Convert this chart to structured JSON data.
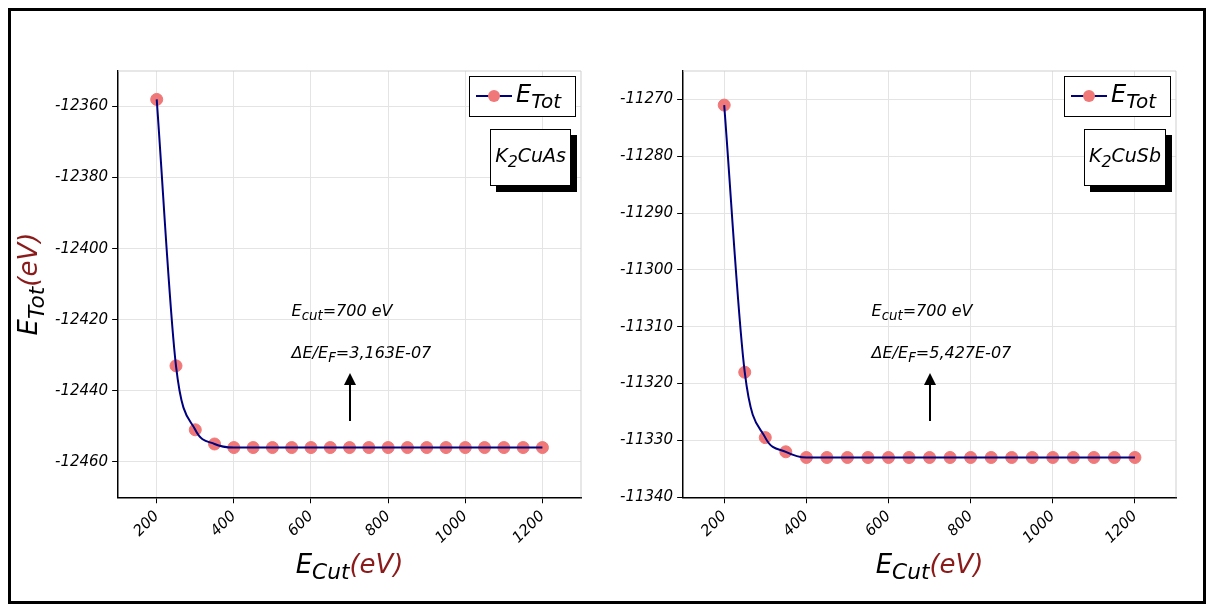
{
  "chart_data": [
    {
      "type": "line",
      "xlabel": "E$_{Cut}$(eV)",
      "ylabel": "E$_{Tot}$(eV)",
      "x": [
        200,
        250,
        300,
        350,
        400,
        450,
        500,
        550,
        600,
        650,
        700,
        750,
        800,
        850,
        900,
        950,
        1000,
        1050,
        1100,
        1150,
        1200
      ],
      "series": [
        {
          "type": "line",
          "color": "#00007f",
          "marker": "none",
          "values": [
            -12358,
            -12433,
            -12451,
            -12455,
            -12456,
            -12456,
            -12456,
            -12456,
            -12456,
            -12456,
            -12456,
            -12456,
            -12456,
            -12456,
            -12456,
            -12456,
            -12456,
            -12456,
            -12456,
            -12456,
            -12456
          ]
        },
        {
          "type": "scatter",
          "name": "E$_{Tot}$",
          "color": "#f07878",
          "marker": "circle",
          "values": [
            -12358,
            -12433,
            -12451,
            -12455,
            -12456,
            -12456,
            -12456,
            -12456,
            -12456,
            -12456,
            -12456,
            -12456,
            -12456,
            -12456,
            -12456,
            -12456,
            -12456,
            -12456,
            -12456,
            -12456,
            -12456
          ]
        }
      ],
      "xlim": [
        100,
        1300
      ],
      "xticks": [
        200,
        400,
        600,
        800,
        1000,
        1200
      ],
      "ylim": [
        -12470,
        -12350
      ],
      "yticks": [
        -12460,
        -12440,
        -12420,
        -12400,
        -12380,
        -12360
      ],
      "grid": true,
      "legend": "top right",
      "line_style": "solid",
      "annotations": [
        "K$_{2}$CuAs",
        "E$_{cut}$=700 eV",
        "ΔE/E$_{F}$=3,163E-07"
      ]
    },
    {
      "type": "line",
      "xlabel": "E$_{Cut}$(eV)",
      "x": [
        200,
        250,
        300,
        350,
        400,
        450,
        500,
        550,
        600,
        650,
        700,
        750,
        800,
        850,
        900,
        950,
        1000,
        1050,
        1100,
        1150,
        1200
      ],
      "series": [
        {
          "type": "line",
          "color": "#00007f",
          "marker": "none",
          "values": [
            -11271,
            -11318,
            -11329.5,
            -11332,
            -11333,
            -11333,
            -11333,
            -11333,
            -11333,
            -11333,
            -11333,
            -11333,
            -11333,
            -11333,
            -11333,
            -11333,
            -11333,
            -11333,
            -11333,
            -11333,
            -11333
          ]
        },
        {
          "type": "scatter",
          "name": "E$_{Tot}$",
          "color": "#f07878",
          "marker": "circle",
          "values": [
            -11271,
            -11318,
            -11329.5,
            -11332,
            -11333,
            -11333,
            -11333,
            -11333,
            -11333,
            -11333,
            -11333,
            -11333,
            -11333,
            -11333,
            -11333,
            -11333,
            -11333,
            -11333,
            -11333,
            -11333,
            -11333
          ]
        }
      ],
      "xlim": [
        100,
        1300
      ],
      "xticks": [
        200,
        400,
        600,
        800,
        1000,
        1200
      ],
      "ylim": [
        -11340,
        -11265
      ],
      "yticks": [
        -11340,
        -11330,
        -11320,
        -11310,
        -11300,
        -11290,
        -11280,
        -11270
      ],
      "grid": true,
      "legend": "top right",
      "line_style": "solid",
      "annotations": [
        "K$_{2}$CuSb",
        "E$_{cut}$=700 eV",
        "ΔE/E$_{F}$=5,427E-07"
      ]
    }
  ]
}
